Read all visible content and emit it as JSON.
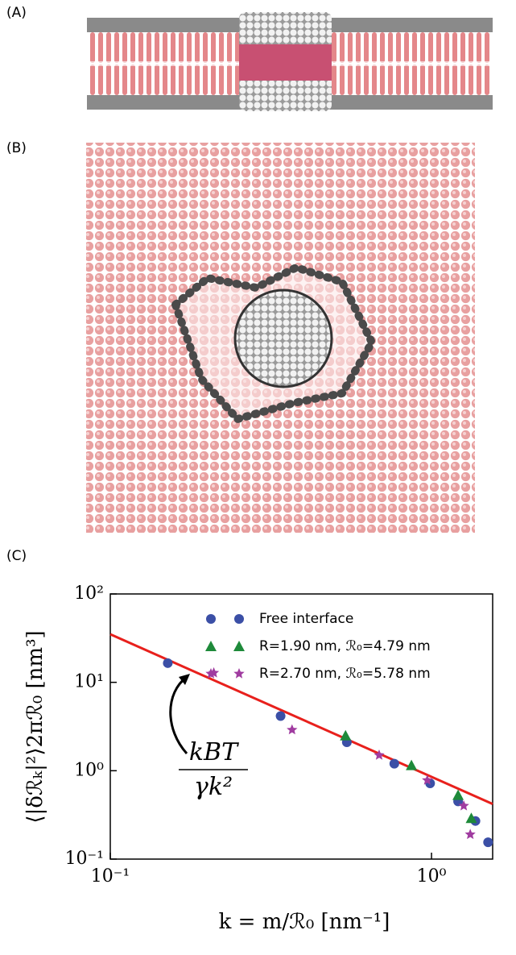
{
  "panels": [
    "(A)",
    "(B)",
    "(C)"
  ],
  "chart_data": {
    "type": "scatter",
    "x_label": "k = m/ℛ₀ [nm⁻¹]",
    "y_label": "⟨|δℛₖ|²⟩2πℛ₀ [nm³]",
    "annotation": {
      "numerator": "kBT",
      "denominator": "γk²"
    },
    "log_x": true,
    "log_y": true,
    "xlim": [
      0.1,
      1.55
    ],
    "ylim": [
      0.1,
      100
    ],
    "xticks": [
      {
        "value": 0.1,
        "label": "10⁻¹"
      },
      {
        "value": 1,
        "label": "10⁰"
      }
    ],
    "yticks": [
      {
        "value": 0.1,
        "label": "10⁻¹"
      },
      {
        "value": 1,
        "label": "10⁰"
      },
      {
        "value": 10,
        "label": "10¹"
      },
      {
        "value": 100,
        "label": "10²"
      }
    ],
    "series": [
      {
        "name": "Free interface",
        "color": "#3b4fa6",
        "marker": "circle",
        "x": [
          0.151,
          0.339,
          0.545,
          0.766,
          0.99,
          1.21,
          1.37,
          1.5
        ],
        "values": [
          16.5,
          4.15,
          2.1,
          1.2,
          0.72,
          0.45,
          0.27,
          0.155
        ]
      },
      {
        "name": "R=1.90 nm, ℛ₀=4.79 nm",
        "color": "#1e8a3a",
        "marker": "triangle",
        "x": [
          0.54,
          0.866,
          1.21,
          1.33
        ],
        "values": [
          2.5,
          1.15,
          0.53,
          0.29
        ]
      },
      {
        "name": "R=2.70 nm, ℛ₀=5.78 nm",
        "color": "#a03ca0",
        "marker": "star",
        "x": [
          0.21,
          0.368,
          0.687,
          0.97,
          1.26,
          1.32
        ],
        "values": [
          12.8,
          2.9,
          1.5,
          0.78,
          0.4,
          0.19
        ]
      },
      {
        "color": "#e8201c",
        "marker": "line",
        "x": [
          0.1,
          1.55
        ],
        "values": [
          35,
          0.42
        ]
      }
    ],
    "legend": "upper right"
  }
}
